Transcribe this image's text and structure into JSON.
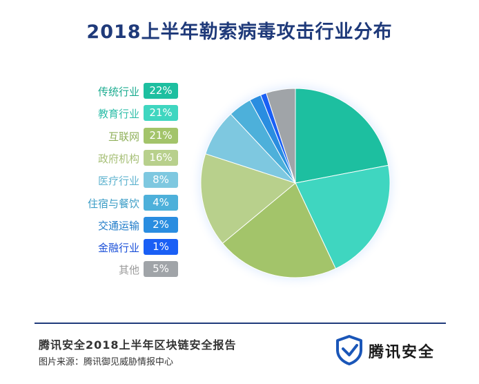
{
  "title": "2018上半年勒索病毒攻击行业分布",
  "chart_data": {
    "type": "pie",
    "title": "2018上半年勒索病毒攻击行业分布",
    "unit": "%",
    "slices": [
      {
        "label": "传统行业",
        "value": 22,
        "display": "22%",
        "color": "#1dbfa0",
        "label_color": "#1aab8f"
      },
      {
        "label": "教育行业",
        "value": 21,
        "display": "21%",
        "color": "#3fd6c0",
        "label_color": "#2fbea9"
      },
      {
        "label": "互联网",
        "value": 21,
        "display": "21%",
        "color": "#a3c46a",
        "label_color": "#8fb05a"
      },
      {
        "label": "政府机构",
        "value": 16,
        "display": "16%",
        "color": "#b8d08c",
        "label_color": "#a6bf76"
      },
      {
        "label": "医疗行业",
        "value": 8,
        "display": "8%",
        "color": "#7ec8e0",
        "label_color": "#5fb3cf"
      },
      {
        "label": "住宿与餐饮",
        "value": 4,
        "display": "4%",
        "color": "#4db0da",
        "label_color": "#3a9cc6"
      },
      {
        "label": "交通运输",
        "value": 2,
        "display": "2%",
        "color": "#2a8de0",
        "label_color": "#1f7bc8"
      },
      {
        "label": "金融行业",
        "value": 1,
        "display": "1%",
        "color": "#1a5ff5",
        "label_color": "#1a4fd8"
      },
      {
        "label": "其他",
        "value": 5,
        "display": "5%",
        "color": "#a0a4a8",
        "label_color": "#9a9a9a"
      }
    ]
  },
  "footer": {
    "report_title": "腾讯安全2018上半年区块链安全报告",
    "source": "图片来源：腾讯御见威胁情报中心",
    "brand": "腾讯安全"
  },
  "colors": {
    "title": "#1f3a7a",
    "brand_logo": "#1a56b8"
  }
}
